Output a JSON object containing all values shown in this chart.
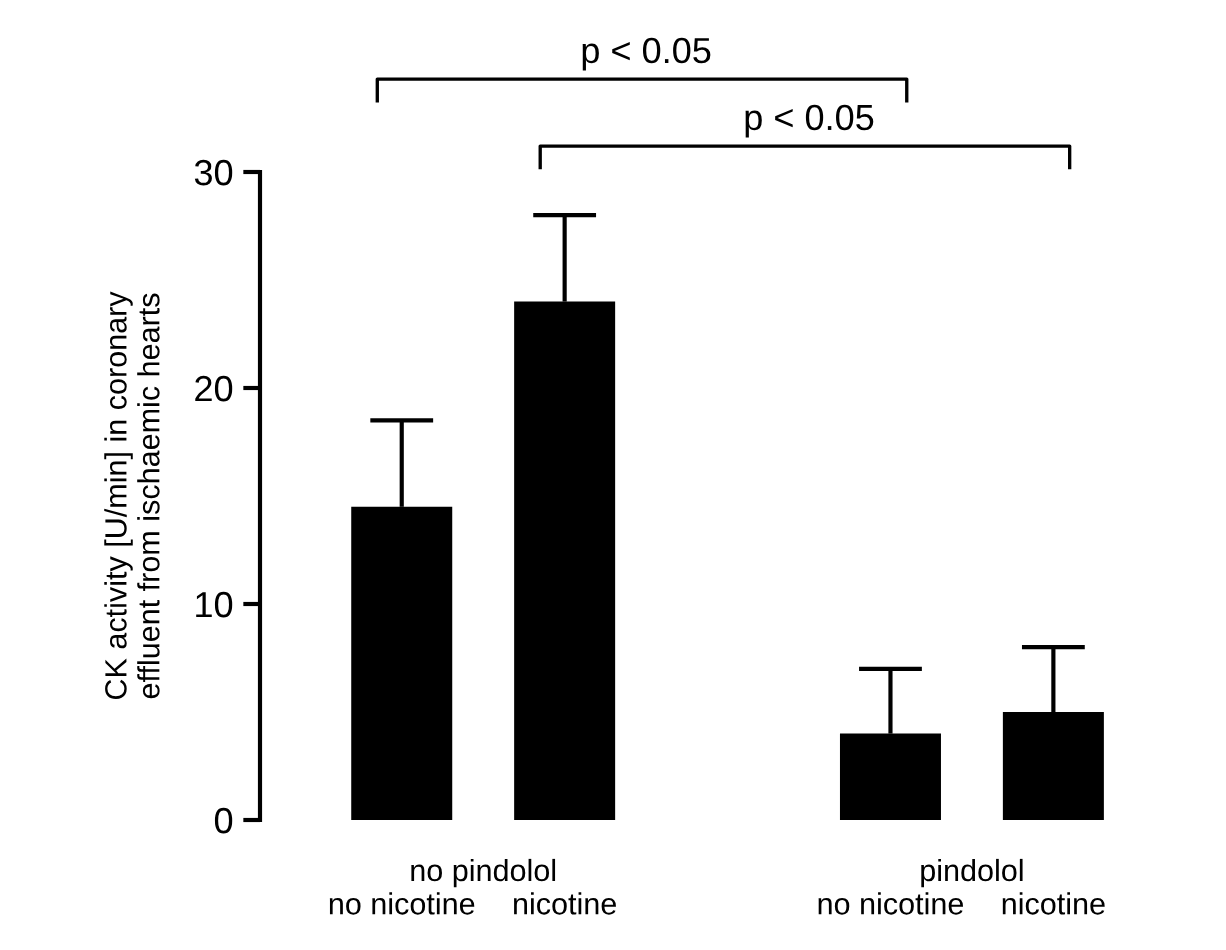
{
  "chart_data": {
    "type": "bar",
    "ylabel": "CK activity [U/min] in coronary\neffluent from ischaemic hearts",
    "categories": [
      "no nicotine",
      "nicotine",
      null,
      "no nicotine",
      "nicotine"
    ],
    "values": [
      14.5,
      24,
      null,
      4,
      5
    ],
    "errors": [
      [
        14.5,
        18.5
      ],
      [
        24,
        28
      ],
      null,
      [
        4,
        7
      ],
      [
        5,
        8
      ]
    ],
    "color": "#000000",
    "ylim": [
      0,
      30
    ],
    "yticks": [
      0,
      10,
      20,
      30
    ],
    "grid": false,
    "annotations": [
      "no pindolol",
      "pindolol",
      "p < 0.05",
      "p < 0.05"
    ]
  }
}
